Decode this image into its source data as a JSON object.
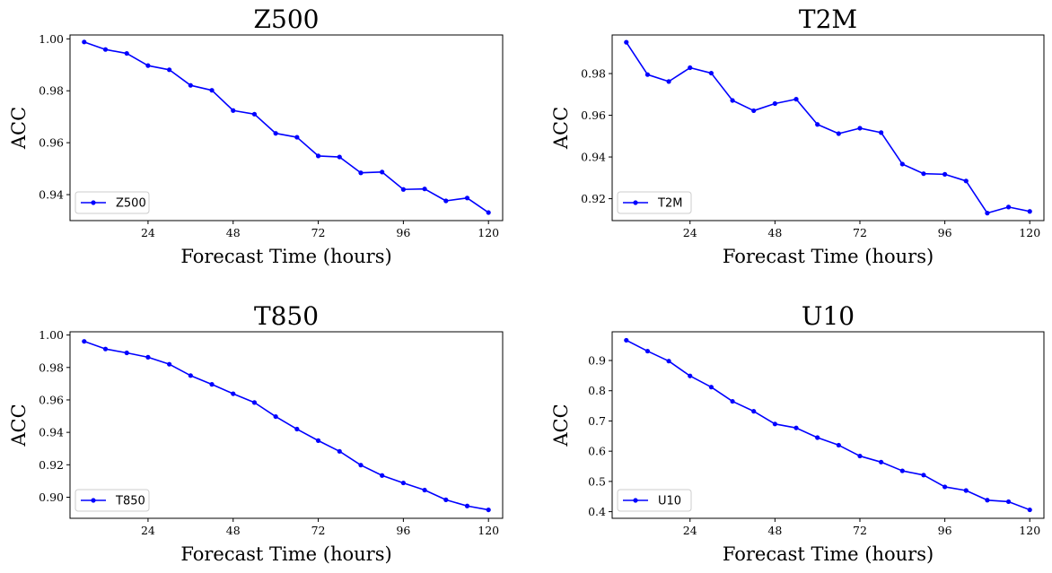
{
  "chart_data": [
    {
      "type": "line",
      "title": "Z500",
      "xlabel": "Forecast Time (hours)",
      "ylabel": "ACC",
      "xlim": [
        2,
        124
      ],
      "ylim": [
        0.93,
        1.0015
      ],
      "xticks": [
        24,
        48,
        72,
        96,
        120
      ],
      "yticks": [
        0.94,
        0.96,
        0.98,
        1.0
      ],
      "ytick_labels": [
        "0.94",
        "0.96",
        "0.98",
        "1.00"
      ],
      "legend_position": "lower-left",
      "series": [
        {
          "name": "Z500",
          "color": "#0000ff",
          "x": [
            6,
            12,
            18,
            24,
            30,
            36,
            42,
            48,
            54,
            60,
            66,
            72,
            78,
            84,
            90,
            96,
            102,
            108,
            114,
            120
          ],
          "values": [
            0.9988,
            0.9959,
            0.9944,
            0.9897,
            0.9881,
            0.9821,
            0.9802,
            0.9724,
            0.971,
            0.9636,
            0.9621,
            0.9549,
            0.9545,
            0.9484,
            0.9487,
            0.942,
            0.9422,
            0.9376,
            0.9387,
            0.9331
          ]
        }
      ]
    },
    {
      "type": "line",
      "title": "T2M",
      "xlabel": "Forecast Time (hours)",
      "ylabel": "ACC",
      "xlim": [
        2,
        124
      ],
      "ylim": [
        0.9095,
        0.9985
      ],
      "xticks": [
        24,
        48,
        72,
        96,
        120
      ],
      "yticks": [
        0.92,
        0.94,
        0.96,
        0.98
      ],
      "ytick_labels": [
        "0.92",
        "0.94",
        "0.96",
        "0.98"
      ],
      "legend_position": "lower-left",
      "series": [
        {
          "name": "T2M",
          "color": "#0000ff",
          "x": [
            6,
            12,
            18,
            24,
            30,
            36,
            42,
            48,
            54,
            60,
            66,
            72,
            78,
            84,
            90,
            96,
            102,
            108,
            114,
            120
          ],
          "values": [
            0.995,
            0.9795,
            0.9762,
            0.9828,
            0.9802,
            0.9671,
            0.9622,
            0.9656,
            0.9677,
            0.9556,
            0.9512,
            0.9538,
            0.9517,
            0.9366,
            0.932,
            0.9317,
            0.9285,
            0.9131,
            0.916,
            0.9139
          ]
        }
      ]
    },
    {
      "type": "line",
      "title": "T850",
      "xlabel": "Forecast Time (hours)",
      "ylabel": "ACC",
      "xlim": [
        2,
        124
      ],
      "ylim": [
        0.887,
        1.002
      ],
      "xticks": [
        24,
        48,
        72,
        96,
        120
      ],
      "yticks": [
        0.9,
        0.92,
        0.94,
        0.96,
        0.98,
        1.0
      ],
      "ytick_labels": [
        "0.90",
        "0.92",
        "0.94",
        "0.96",
        "0.98",
        "1.00"
      ],
      "legend_position": "lower-left",
      "series": [
        {
          "name": "T850",
          "color": "#0000ff",
          "x": [
            6,
            12,
            18,
            24,
            30,
            36,
            42,
            48,
            54,
            60,
            66,
            72,
            78,
            84,
            90,
            96,
            102,
            108,
            114,
            120
          ],
          "values": [
            0.9961,
            0.9914,
            0.989,
            0.9863,
            0.982,
            0.975,
            0.9696,
            0.9638,
            0.9584,
            0.9497,
            0.942,
            0.9349,
            0.9283,
            0.9198,
            0.9134,
            0.9088,
            0.9044,
            0.8984,
            0.8946,
            0.8922
          ]
        }
      ]
    },
    {
      "type": "line",
      "title": "U10",
      "xlabel": "Forecast Time (hours)",
      "ylabel": "ACC",
      "xlim": [
        2,
        124
      ],
      "ylim": [
        0.378,
        0.995
      ],
      "xticks": [
        24,
        48,
        72,
        96,
        120
      ],
      "yticks": [
        0.4,
        0.5,
        0.6,
        0.7,
        0.8,
        0.9
      ],
      "ytick_labels": [
        "0.4",
        "0.5",
        "0.6",
        "0.7",
        "0.8",
        "0.9"
      ],
      "legend_position": "lower-left",
      "series": [
        {
          "name": "U10",
          "color": "#0000ff",
          "x": [
            6,
            12,
            18,
            24,
            30,
            36,
            42,
            48,
            54,
            60,
            66,
            72,
            78,
            84,
            90,
            96,
            102,
            108,
            114,
            120
          ],
          "values": [
            0.967,
            0.931,
            0.898,
            0.849,
            0.812,
            0.765,
            0.732,
            0.69,
            0.677,
            0.645,
            0.62,
            0.584,
            0.564,
            0.535,
            0.521,
            0.482,
            0.47,
            0.438,
            0.433,
            0.406
          ]
        }
      ]
    }
  ]
}
